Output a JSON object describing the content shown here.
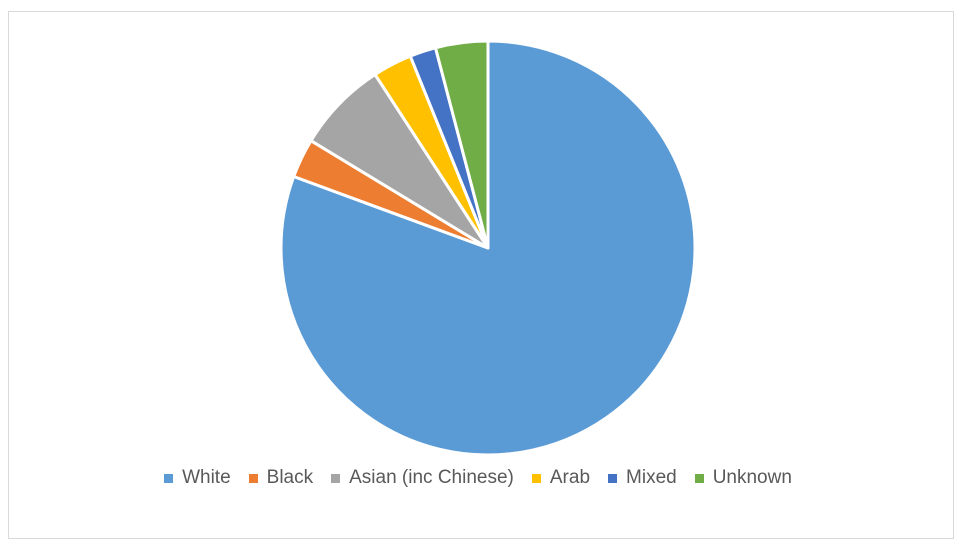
{
  "chart_data": {
    "type": "pie",
    "title": "",
    "legend_position": "bottom",
    "slices": [
      {
        "label": "White",
        "value": 79,
        "color": "#5b9bd5"
      },
      {
        "label": "Black",
        "value": 3,
        "color": "#ed7d31"
      },
      {
        "label": "Asian (inc Chinese)",
        "value": 7,
        "color": "#a5a5a5"
      },
      {
        "label": "Arab",
        "value": 3,
        "color": "#ffc000"
      },
      {
        "label": "Mixed",
        "value": 2,
        "color": "#4472c4"
      },
      {
        "label": "Unknown",
        "value": 4,
        "color": "#70ad47"
      }
    ]
  }
}
